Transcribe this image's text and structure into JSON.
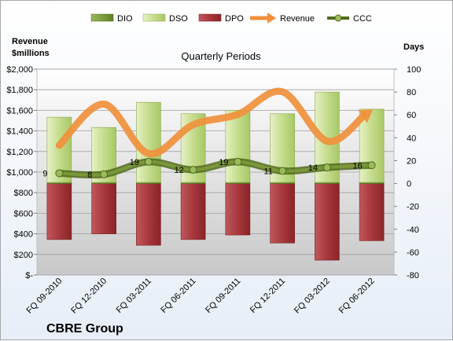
{
  "chart_data": {
    "type": "bar",
    "title": "Quarterly Periods",
    "company": "CBRE Group",
    "left_axis_label": [
      "Revenue",
      "$millions"
    ],
    "right_axis_label": "Days",
    "left_axis": {
      "min": 0,
      "max": 2000,
      "step": 200,
      "tick_labels": [
        "$-",
        "$200",
        "$400",
        "$600",
        "$800",
        "$1,000",
        "$1,200",
        "$1,400",
        "$1,600",
        "$1,800",
        "$2,000"
      ]
    },
    "right_axis": {
      "min": -80,
      "max": 100,
      "step": 20,
      "tick_labels": [
        "-80",
        "-60",
        "-40",
        "-20",
        "0",
        "20",
        "40",
        "60",
        "80",
        "100"
      ]
    },
    "categories": [
      "FQ 09-2010",
      "FQ 12-2010",
      "FQ 03-2011",
      "FQ 06-2011",
      "FQ 09-2011",
      "FQ 12-2011",
      "FQ 03-2012",
      "FQ 06-2012"
    ],
    "series": [
      {
        "name": "DIO",
        "axis": "right",
        "values": [
          1,
          1,
          1,
          1,
          1,
          1,
          1,
          1
        ],
        "color": "#6f8f2e"
      },
      {
        "name": "DSO",
        "axis": "right",
        "values": [
          57,
          48,
          70,
          60,
          63,
          60,
          79,
          64
        ],
        "color": "#c6df8a"
      },
      {
        "name": "DPO",
        "axis": "right",
        "values": [
          -49,
          -44,
          -54,
          -49,
          -45,
          -52,
          -67,
          -50
        ],
        "color": "#a8383c"
      },
      {
        "name": "Revenue",
        "axis": "left",
        "values": [
          1260,
          1660,
          1180,
          1460,
          1560,
          1780,
          1300,
          1600
        ],
        "color": "#f0903c"
      },
      {
        "name": "CCC",
        "axis": "right",
        "values": [
          9,
          8,
          19,
          12,
          19,
          11,
          14,
          16
        ],
        "color": "#4f6a1c"
      }
    ],
    "ccc_labels": [
      "9",
      "8",
      "19",
      "12",
      "19",
      "11",
      "14",
      "16"
    ],
    "legend": {
      "placement": "top",
      "entries": [
        "DIO",
        "DSO",
        "DPO",
        "Revenue",
        "CCC"
      ]
    },
    "grid": true
  }
}
